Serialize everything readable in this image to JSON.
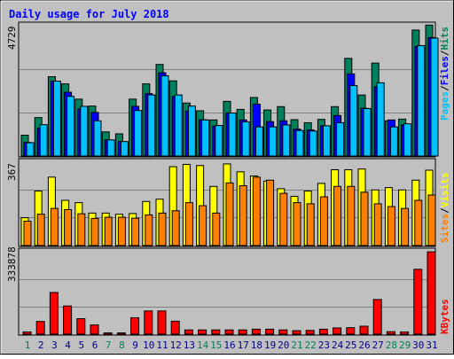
{
  "chart_data": [
    {
      "type": "bar",
      "title": "Daily usage for July 2018",
      "panel": "hits-files-pages",
      "categories": [
        "1",
        "2",
        "3",
        "4",
        "5",
        "6",
        "7",
        "8",
        "9",
        "10",
        "11",
        "12",
        "13",
        "14",
        "15",
        "16",
        "17",
        "18",
        "19",
        "20",
        "21",
        "22",
        "23",
        "24",
        "25",
        "26",
        "27",
        "28",
        "29",
        "30",
        "31"
      ],
      "weekend_days": [
        "1",
        "7",
        "8",
        "14",
        "15",
        "21",
        "22",
        "28",
        "29"
      ],
      "ylim": [
        0,
        4729
      ],
      "y_tick_label": "4729",
      "grid": true,
      "series": [
        {
          "name": "Hits",
          "color": "#00805c",
          "values": [
            750,
            1385,
            2860,
            2600,
            2050,
            1800,
            870,
            800,
            2050,
            2600,
            3300,
            2710,
            1910,
            1630,
            1300,
            1970,
            1680,
            2110,
            1660,
            1780,
            1310,
            1200,
            1320,
            1780,
            3520,
            2200,
            3350,
            1270,
            1330,
            4540,
            4720
          ]
        },
        {
          "name": "Files",
          "color": "#0000ff",
          "values": [
            490,
            1000,
            2700,
            2300,
            1700,
            1570,
            580,
            520,
            1790,
            2250,
            3000,
            2150,
            1620,
            1310,
            1080,
            1550,
            1300,
            1870,
            1240,
            1270,
            970,
            940,
            1090,
            1460,
            2960,
            1720,
            2500,
            1300,
            1120,
            3950,
            4270
          ]
        },
        {
          "name": "Pages",
          "color": "#00c0ff",
          "values": [
            480,
            1130,
            2700,
            2150,
            1790,
            1270,
            580,
            520,
            1640,
            2200,
            2890,
            2200,
            1800,
            1300,
            1100,
            1550,
            1230,
            1050,
            1050,
            1120,
            920,
            900,
            1090,
            1200,
            2540,
            1710,
            2640,
            1050,
            1160,
            3980,
            4250
          ]
        }
      ]
    },
    {
      "type": "bar",
      "panel": "visits-sites",
      "categories": [
        "1",
        "2",
        "3",
        "4",
        "5",
        "6",
        "7",
        "8",
        "9",
        "10",
        "11",
        "12",
        "13",
        "14",
        "15",
        "16",
        "17",
        "18",
        "19",
        "20",
        "21",
        "22",
        "23",
        "24",
        "25",
        "26",
        "27",
        "28",
        "29",
        "30",
        "31"
      ],
      "ylim": [
        0,
        367
      ],
      "y_tick_label": "367",
      "grid": true,
      "series": [
        {
          "name": "Visits",
          "color": "#ffff00",
          "values": [
            120,
            235,
            295,
            195,
            185,
            140,
            140,
            135,
            138,
            190,
            200,
            340,
            350,
            345,
            255,
            352,
            318,
            300,
            278,
            245,
            212,
            235,
            268,
            327,
            327,
            330,
            240,
            250,
            240,
            282,
            325
          ]
        },
        {
          "name": "Sites",
          "color": "#ff8000",
          "values": [
            105,
            135,
            160,
            155,
            137,
            117,
            122,
            122,
            118,
            132,
            140,
            150,
            185,
            172,
            140,
            270,
            258,
            295,
            282,
            225,
            185,
            180,
            210,
            255,
            255,
            230,
            180,
            168,
            160,
            195,
            218
          ]
        }
      ]
    },
    {
      "type": "bar",
      "panel": "kbytes",
      "categories": [
        "1",
        "2",
        "3",
        "4",
        "5",
        "6",
        "7",
        "8",
        "9",
        "10",
        "11",
        "12",
        "13",
        "14",
        "15",
        "16",
        "17",
        "18",
        "19",
        "20",
        "21",
        "22",
        "23",
        "24",
        "25",
        "26",
        "27",
        "28",
        "29",
        "30",
        "31"
      ],
      "ylim": [
        0,
        333878
      ],
      "y_tick_label": "333878",
      "grid": true,
      "series": [
        {
          "name": "KBytes",
          "color": "#ff0000",
          "values": [
            9000,
            51000,
            167000,
            113000,
            62000,
            37000,
            5000,
            5000,
            66000,
            93000,
            93000,
            52000,
            17000,
            17000,
            17000,
            17000,
            17000,
            20000,
            20000,
            17000,
            14000,
            15000,
            20000,
            25000,
            26000,
            32000,
            139000,
            10000,
            9000,
            260000,
            330000
          ]
        }
      ]
    }
  ],
  "legend": {
    "top": {
      "pages": "Pages",
      "files": "Files",
      "hits": "Hits",
      "sep": "/"
    },
    "mid": {
      "sites": "Sites",
      "visits": "Visits",
      "sep": "/"
    },
    "bottom": {
      "kbytes": "KBytes"
    }
  },
  "colors": {
    "frame_bg": "#c0c0c0",
    "panel_bg": "#c0c0c0",
    "title": "#0000ff",
    "weekday_label": "#00008b",
    "weekend_label": "#00805c"
  }
}
